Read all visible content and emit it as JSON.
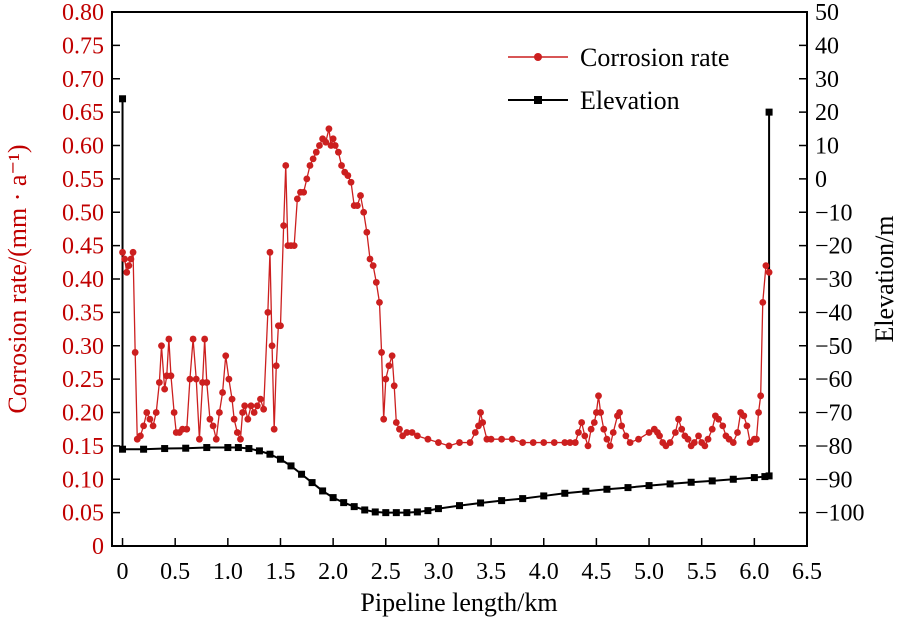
{
  "chart_data": {
    "type": "line",
    "x_axis": {
      "label": "Pipeline length/km",
      "range": [
        -0.1,
        6.5
      ],
      "ticks": [
        "0",
        "0.5",
        "1.0",
        "1.5",
        "2.0",
        "2.5",
        "3.0",
        "3.5",
        "4.0",
        "4.5",
        "5.0",
        "5.5",
        "6.0",
        "6.5"
      ]
    },
    "y_left": {
      "label": "Corrosion rate/(mm · a⁻¹)",
      "range": [
        0,
        0.8
      ],
      "color": "#cc1f1f",
      "ticks": [
        "0",
        "0.05",
        "0.10",
        "0.15",
        "0.20",
        "0.25",
        "0.30",
        "0.35",
        "0.40",
        "0.45",
        "0.50",
        "0.55",
        "0.60",
        "0.65",
        "0.70",
        "0.75",
        "0.80"
      ]
    },
    "y_right": {
      "label": "Elevation/m",
      "range": [
        -110,
        50
      ],
      "ticks": [
        "50",
        "40",
        "30",
        "20",
        "10",
        "0",
        "−10",
        "−20",
        "−30",
        "−40",
        "−50",
        "−60",
        "−70",
        "−80",
        "−90",
        "−100"
      ]
    },
    "legend": [
      {
        "name": "Corrosion rate",
        "color": "#cc1f1f",
        "marker": "circle"
      },
      {
        "name": "Elevation",
        "color": "#000000",
        "marker": "square"
      }
    ],
    "series": [
      {
        "name": "Corrosion rate",
        "axis": "left",
        "color": "#cc1f1f",
        "points": [
          [
            0.0,
            0.44
          ],
          [
            0.02,
            0.43
          ],
          [
            0.04,
            0.41
          ],
          [
            0.06,
            0.42
          ],
          [
            0.08,
            0.43
          ],
          [
            0.1,
            0.44
          ],
          [
            0.12,
            0.29
          ],
          [
            0.14,
            0.16
          ],
          [
            0.17,
            0.165
          ],
          [
            0.2,
            0.18
          ],
          [
            0.23,
            0.2
          ],
          [
            0.26,
            0.19
          ],
          [
            0.29,
            0.18
          ],
          [
            0.32,
            0.2
          ],
          [
            0.35,
            0.245
          ],
          [
            0.37,
            0.3
          ],
          [
            0.4,
            0.235
          ],
          [
            0.42,
            0.255
          ],
          [
            0.44,
            0.31
          ],
          [
            0.46,
            0.255
          ],
          [
            0.49,
            0.2
          ],
          [
            0.51,
            0.17
          ],
          [
            0.54,
            0.17
          ],
          [
            0.57,
            0.175
          ],
          [
            0.61,
            0.175
          ],
          [
            0.64,
            0.25
          ],
          [
            0.67,
            0.31
          ],
          [
            0.7,
            0.25
          ],
          [
            0.73,
            0.16
          ],
          [
            0.76,
            0.245
          ],
          [
            0.78,
            0.31
          ],
          [
            0.8,
            0.245
          ],
          [
            0.83,
            0.19
          ],
          [
            0.86,
            0.18
          ],
          [
            0.89,
            0.16
          ],
          [
            0.92,
            0.2
          ],
          [
            0.95,
            0.23
          ],
          [
            0.98,
            0.285
          ],
          [
            1.01,
            0.25
          ],
          [
            1.04,
            0.22
          ],
          [
            1.06,
            0.19
          ],
          [
            1.09,
            0.17
          ],
          [
            1.12,
            0.16
          ],
          [
            1.14,
            0.2
          ],
          [
            1.16,
            0.21
          ],
          [
            1.19,
            0.19
          ],
          [
            1.22,
            0.21
          ],
          [
            1.25,
            0.2
          ],
          [
            1.28,
            0.21
          ],
          [
            1.31,
            0.22
          ],
          [
            1.34,
            0.205
          ],
          [
            1.38,
            0.35
          ],
          [
            1.4,
            0.44
          ],
          [
            1.42,
            0.3
          ],
          [
            1.44,
            0.175
          ],
          [
            1.46,
            0.27
          ],
          [
            1.48,
            0.33
          ],
          [
            1.5,
            0.33
          ],
          [
            1.53,
            0.48
          ],
          [
            1.55,
            0.57
          ],
          [
            1.57,
            0.45
          ],
          [
            1.6,
            0.45
          ],
          [
            1.63,
            0.45
          ],
          [
            1.66,
            0.52
          ],
          [
            1.69,
            0.53
          ],
          [
            1.72,
            0.53
          ],
          [
            1.75,
            0.55
          ],
          [
            1.78,
            0.57
          ],
          [
            1.81,
            0.58
          ],
          [
            1.84,
            0.59
          ],
          [
            1.87,
            0.6
          ],
          [
            1.9,
            0.61
          ],
          [
            1.93,
            0.605
          ],
          [
            1.96,
            0.625
          ],
          [
            1.98,
            0.6
          ],
          [
            2.0,
            0.61
          ],
          [
            2.02,
            0.6
          ],
          [
            2.05,
            0.59
          ],
          [
            2.08,
            0.57
          ],
          [
            2.11,
            0.56
          ],
          [
            2.14,
            0.555
          ],
          [
            2.17,
            0.545
          ],
          [
            2.2,
            0.51
          ],
          [
            2.23,
            0.51
          ],
          [
            2.26,
            0.525
          ],
          [
            2.29,
            0.5
          ],
          [
            2.32,
            0.47
          ],
          [
            2.35,
            0.43
          ],
          [
            2.38,
            0.42
          ],
          [
            2.41,
            0.395
          ],
          [
            2.44,
            0.365
          ],
          [
            2.46,
            0.29
          ],
          [
            2.48,
            0.19
          ],
          [
            2.5,
            0.25
          ],
          [
            2.53,
            0.27
          ],
          [
            2.56,
            0.285
          ],
          [
            2.58,
            0.24
          ],
          [
            2.6,
            0.185
          ],
          [
            2.63,
            0.175
          ],
          [
            2.66,
            0.165
          ],
          [
            2.7,
            0.17
          ],
          [
            2.75,
            0.17
          ],
          [
            2.8,
            0.165
          ],
          [
            2.9,
            0.16
          ],
          [
            3.0,
            0.155
          ],
          [
            3.1,
            0.15
          ],
          [
            3.2,
            0.155
          ],
          [
            3.3,
            0.155
          ],
          [
            3.35,
            0.17
          ],
          [
            3.38,
            0.18
          ],
          [
            3.4,
            0.2
          ],
          [
            3.42,
            0.185
          ],
          [
            3.46,
            0.16
          ],
          [
            3.5,
            0.16
          ],
          [
            3.6,
            0.16
          ],
          [
            3.7,
            0.16
          ],
          [
            3.8,
            0.155
          ],
          [
            3.9,
            0.155
          ],
          [
            4.0,
            0.155
          ],
          [
            4.1,
            0.155
          ],
          [
            4.2,
            0.155
          ],
          [
            4.25,
            0.155
          ],
          [
            4.3,
            0.155
          ],
          [
            4.33,
            0.17
          ],
          [
            4.36,
            0.185
          ],
          [
            4.39,
            0.165
          ],
          [
            4.42,
            0.15
          ],
          [
            4.45,
            0.175
          ],
          [
            4.48,
            0.185
          ],
          [
            4.5,
            0.2
          ],
          [
            4.52,
            0.225
          ],
          [
            4.54,
            0.2
          ],
          [
            4.57,
            0.175
          ],
          [
            4.6,
            0.16
          ],
          [
            4.63,
            0.15
          ],
          [
            4.66,
            0.17
          ],
          [
            4.7,
            0.195
          ],
          [
            4.72,
            0.2
          ],
          [
            4.74,
            0.18
          ],
          [
            4.78,
            0.165
          ],
          [
            4.82,
            0.155
          ],
          [
            4.9,
            0.16
          ],
          [
            5.0,
            0.17
          ],
          [
            5.05,
            0.175
          ],
          [
            5.08,
            0.17
          ],
          [
            5.1,
            0.165
          ],
          [
            5.13,
            0.155
          ],
          [
            5.16,
            0.15
          ],
          [
            5.2,
            0.155
          ],
          [
            5.25,
            0.17
          ],
          [
            5.28,
            0.19
          ],
          [
            5.31,
            0.175
          ],
          [
            5.34,
            0.165
          ],
          [
            5.37,
            0.16
          ],
          [
            5.4,
            0.15
          ],
          [
            5.43,
            0.155
          ],
          [
            5.47,
            0.165
          ],
          [
            5.5,
            0.155
          ],
          [
            5.53,
            0.15
          ],
          [
            5.56,
            0.16
          ],
          [
            5.6,
            0.175
          ],
          [
            5.63,
            0.195
          ],
          [
            5.66,
            0.19
          ],
          [
            5.7,
            0.18
          ],
          [
            5.73,
            0.165
          ],
          [
            5.76,
            0.16
          ],
          [
            5.8,
            0.155
          ],
          [
            5.84,
            0.17
          ],
          [
            5.87,
            0.2
          ],
          [
            5.9,
            0.195
          ],
          [
            5.93,
            0.18
          ],
          [
            5.96,
            0.155
          ],
          [
            6.0,
            0.16
          ],
          [
            6.02,
            0.16
          ],
          [
            6.04,
            0.2
          ],
          [
            6.06,
            0.225
          ],
          [
            6.08,
            0.365
          ],
          [
            6.11,
            0.42
          ],
          [
            6.14,
            0.41
          ]
        ]
      },
      {
        "name": "Elevation",
        "axis": "right",
        "color": "#000000",
        "points": [
          [
            0.0,
            24
          ],
          [
            0.0,
            -81
          ],
          [
            0.2,
            -81
          ],
          [
            0.4,
            -80.8
          ],
          [
            0.6,
            -80.7
          ],
          [
            0.8,
            -80.5
          ],
          [
            1.0,
            -80.5
          ],
          [
            1.1,
            -80.5
          ],
          [
            1.2,
            -80.8
          ],
          [
            1.3,
            -81.5
          ],
          [
            1.4,
            -82.5
          ],
          [
            1.5,
            -84
          ],
          [
            1.6,
            -86
          ],
          [
            1.7,
            -88.5
          ],
          [
            1.8,
            -91
          ],
          [
            1.9,
            -93.5
          ],
          [
            2.0,
            -95.5
          ],
          [
            2.1,
            -97
          ],
          [
            2.2,
            -98.2
          ],
          [
            2.3,
            -99.2
          ],
          [
            2.4,
            -99.8
          ],
          [
            2.5,
            -100
          ],
          [
            2.6,
            -100
          ],
          [
            2.7,
            -100
          ],
          [
            2.8,
            -99.8
          ],
          [
            2.9,
            -99.4
          ],
          [
            3.0,
            -98.8
          ],
          [
            3.2,
            -97.9
          ],
          [
            3.4,
            -97.1
          ],
          [
            3.6,
            -96.4
          ],
          [
            3.8,
            -95.8
          ],
          [
            4.0,
            -95
          ],
          [
            4.2,
            -94.2
          ],
          [
            4.4,
            -93.6
          ],
          [
            4.6,
            -93
          ],
          [
            4.8,
            -92.5
          ],
          [
            5.0,
            -91.9
          ],
          [
            5.2,
            -91.4
          ],
          [
            5.4,
            -90.9
          ],
          [
            5.6,
            -90.5
          ],
          [
            5.8,
            -90
          ],
          [
            6.0,
            -89.5
          ],
          [
            6.1,
            -89.2
          ],
          [
            6.14,
            -89
          ],
          [
            6.14,
            20
          ]
        ]
      }
    ]
  }
}
